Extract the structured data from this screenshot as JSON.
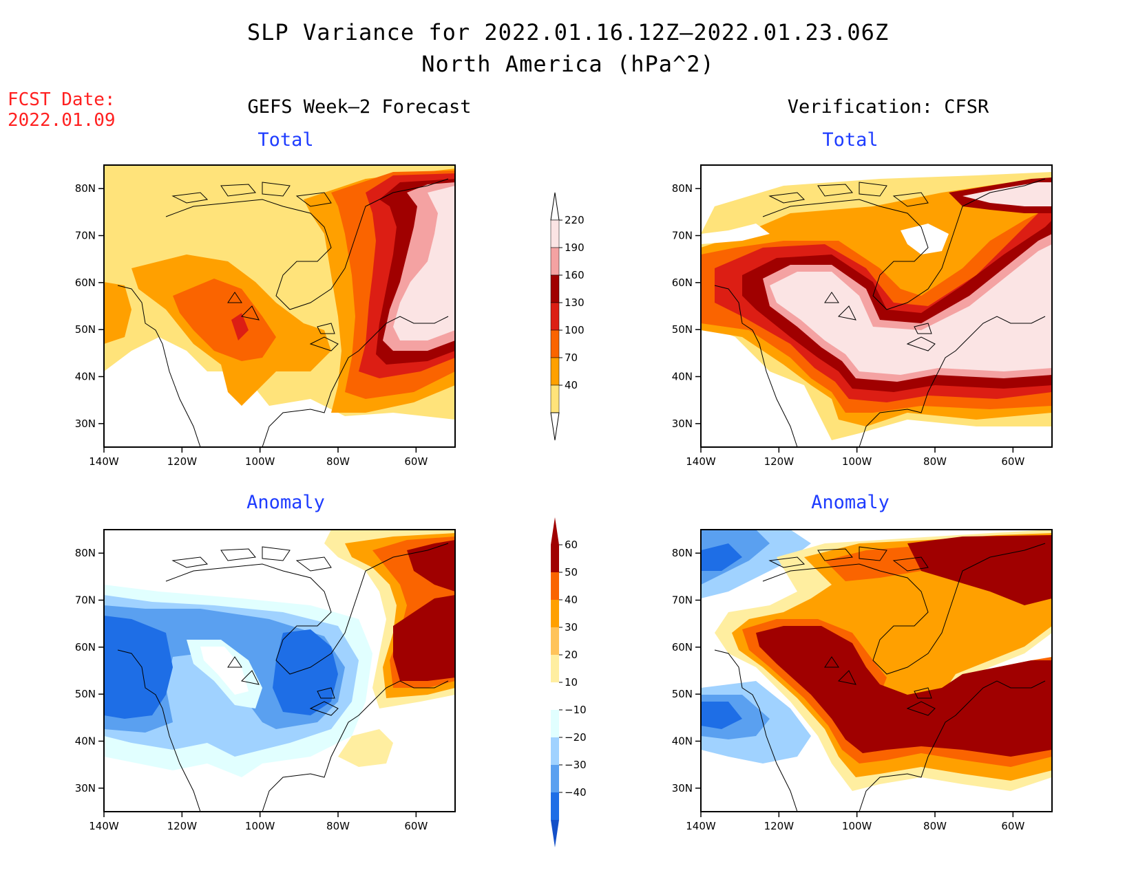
{
  "header": {
    "title_line1": "SLP Variance for 2022.01.16.12Z–2022.01.23.06Z",
    "title_line2": "North America (hPa^2)"
  },
  "fcst_date": {
    "label": "FCST Date:",
    "value": "2022.01.09"
  },
  "columns": {
    "left": "GEFS Week–2 Forecast",
    "right": "Verification: CFSR"
  },
  "panels": [
    {
      "id": "fcst-total",
      "title": "Total"
    },
    {
      "id": "verif-total",
      "title": "Total"
    },
    {
      "id": "fcst-anomaly",
      "title": "Anomaly"
    },
    {
      "id": "verif-anomaly",
      "title": "Anomaly"
    }
  ],
  "axes": {
    "lat_labels": [
      "80N",
      "70N",
      "60N",
      "50N",
      "40N",
      "30N"
    ],
    "lat_values": [
      80,
      70,
      60,
      50,
      40,
      30
    ],
    "lon_labels": [
      "140W",
      "120W",
      "100W",
      "80W",
      "60W"
    ],
    "lon_values": [
      -140,
      -120,
      -100,
      -80,
      -60
    ],
    "lat_range": [
      25,
      85
    ],
    "lon_range": [
      -140,
      -50
    ]
  },
  "colorbars": {
    "total": {
      "levels": [
        "220",
        "190",
        "160",
        "130",
        "100",
        "70",
        "40"
      ],
      "colors": [
        "#fbe4e4",
        "#f4a2a2",
        "#a00000",
        "#dc1e14",
        "#fa6400",
        "#ffa000",
        "#ffe37a"
      ]
    },
    "anomaly": {
      "levels": [
        "60",
        "50",
        "40",
        "30",
        "20",
        "10",
        "−10",
        "−20",
        "−30",
        "−40"
      ],
      "colors": [
        "#a00000",
        "#e61e0a",
        "#fa6400",
        "#ffa000",
        "#ffc35a",
        "#ffeea0",
        "#ffffff",
        "#e1ffff",
        "#a0d2ff",
        "#5aa0f0",
        "#1e6ee6",
        "#1450c8"
      ]
    }
  },
  "colors": {
    "title_blue": "#1e3cff",
    "fcst_red": "#ff2020"
  }
}
